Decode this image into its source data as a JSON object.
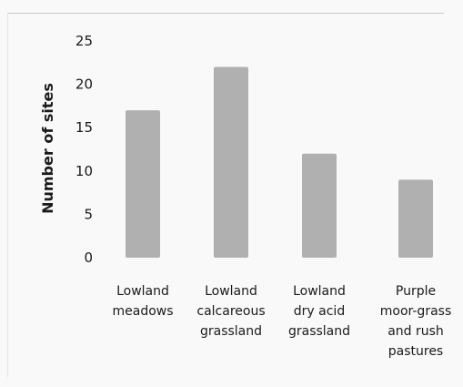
{
  "chart_data": {
    "type": "bar",
    "categories": [
      [
        "Lowland",
        "meadows"
      ],
      [
        "Lowland",
        "calcareous",
        "grassland"
      ],
      [
        "Lowland",
        "dry acid",
        "grassland"
      ],
      [
        "Purple",
        "moor-grass",
        "and rush",
        "pastures"
      ]
    ],
    "values": [
      17,
      22,
      12,
      9
    ],
    "ylabel": "Number of sites",
    "xlabel": "",
    "ylim": [
      0,
      25
    ],
    "yticks": [
      0,
      5,
      10,
      15,
      20,
      25
    ],
    "bar_color": "#b0b0b0",
    "grid": false,
    "legend": "none"
  }
}
